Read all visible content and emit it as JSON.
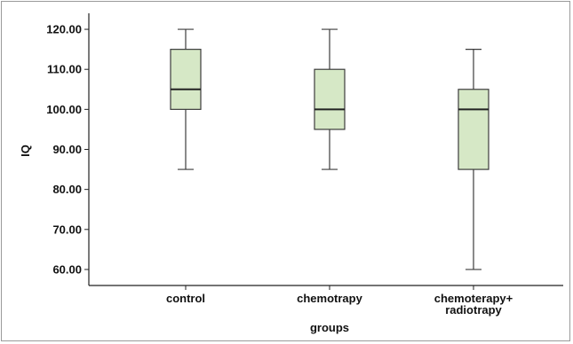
{
  "chart_data": {
    "type": "boxplot",
    "title": "",
    "xlabel": "groups",
    "ylabel": "IQ",
    "ylim": [
      56,
      124
    ],
    "yticks": [
      {
        "value": 60,
        "label": "60.00"
      },
      {
        "value": 70,
        "label": "70.00"
      },
      {
        "value": 80,
        "label": "80.00"
      },
      {
        "value": 90,
        "label": "90.00"
      },
      {
        "value": 100,
        "label": "100.00"
      },
      {
        "value": 110,
        "label": "110.00"
      },
      {
        "value": 120,
        "label": "120.00"
      }
    ],
    "categories": [
      {
        "lines": [
          "control"
        ]
      },
      {
        "lines": [
          "chemotrapy"
        ]
      },
      {
        "lines": [
          "chemoterapy+",
          "radiotrapy"
        ]
      }
    ],
    "boxes": [
      {
        "min": 85,
        "q1": 100,
        "median": 105,
        "q3": 115,
        "max": 120
      },
      {
        "min": 85,
        "q1": 95,
        "median": 100,
        "q3": 110,
        "max": 120
      },
      {
        "min": 60,
        "q1": 85,
        "median": 100,
        "q3": 105,
        "max": 115
      }
    ],
    "colors": {
      "box_fill": "#d6e8c6",
      "box_stroke": "#3c3c3c",
      "axis": "#222222"
    }
  }
}
